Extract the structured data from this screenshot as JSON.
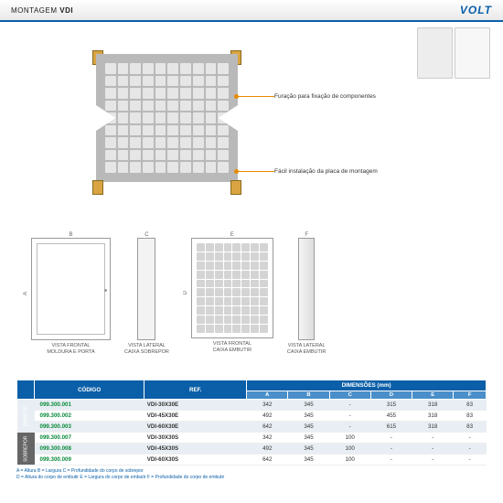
{
  "header": {
    "title_pre": "MONTAGEM ",
    "title_bold": "VDI",
    "logo": "VOLT"
  },
  "callouts": {
    "c1": "Furação para fixação de componentes",
    "c2": "Fácil instalação da placa de montagem"
  },
  "views": {
    "dim_a": "A",
    "dim_b": "B",
    "dim_c": "C",
    "dim_d": "D",
    "dim_e": "E",
    "dim_f": "F",
    "v1": "VISTA FRONTAL\nMOLDURA E PORTA",
    "v2": "VISTA LATERAL\nCAIXA SOBREPOR",
    "v3": "VISTA FRONTAL\nCAIXA EMBUTIR",
    "v4": "VISTA LATERAL\nCAIXA EMBUTIR"
  },
  "table": {
    "h_codigo": "CÓDIGO",
    "h_ref": "REF.",
    "h_dim": "DIMENSÕES (mm)",
    "cols": [
      "A",
      "B",
      "C",
      "D",
      "E",
      "F"
    ],
    "group1": "EMBUTIR",
    "group2": "SOBREPOR",
    "rows": [
      {
        "code": "099.300.001",
        "ref": "VDI-30X30E",
        "a": "342",
        "b": "345",
        "c": "-",
        "d": "315",
        "e": "318",
        "f": "83"
      },
      {
        "code": "099.300.002",
        "ref": "VDI-45X30E",
        "a": "492",
        "b": "345",
        "c": "-",
        "d": "455",
        "e": "318",
        "f": "83"
      },
      {
        "code": "099.300.003",
        "ref": "VDI-60X30E",
        "a": "642",
        "b": "345",
        "c": "-",
        "d": "615",
        "e": "318",
        "f": "83"
      },
      {
        "code": "099.300.007",
        "ref": "VDI-30X30S",
        "a": "342",
        "b": "345",
        "c": "100",
        "d": "-",
        "e": "-",
        "f": "-"
      },
      {
        "code": "099.300.008",
        "ref": "VDI-45X30S",
        "a": "492",
        "b": "345",
        "c": "100",
        "d": "-",
        "e": "-",
        "f": "-"
      },
      {
        "code": "099.300.009",
        "ref": "VDI-60X30S",
        "a": "642",
        "b": "345",
        "c": "100",
        "d": "-",
        "e": "-",
        "f": "-"
      }
    ]
  },
  "legend": {
    "l1": "A = Altura    B = Largura    C = Profundidade do corpo de sobrepor",
    "l2": "D = Altura do corpo de embutir    E = Largura do corpo de embutir    F = Profundidade do corpo de embutir"
  },
  "colors": {
    "accent": "#0a5fa8",
    "callout": "#e88a00",
    "code": "#0a8a3a",
    "panel": "#b9b9b9"
  }
}
